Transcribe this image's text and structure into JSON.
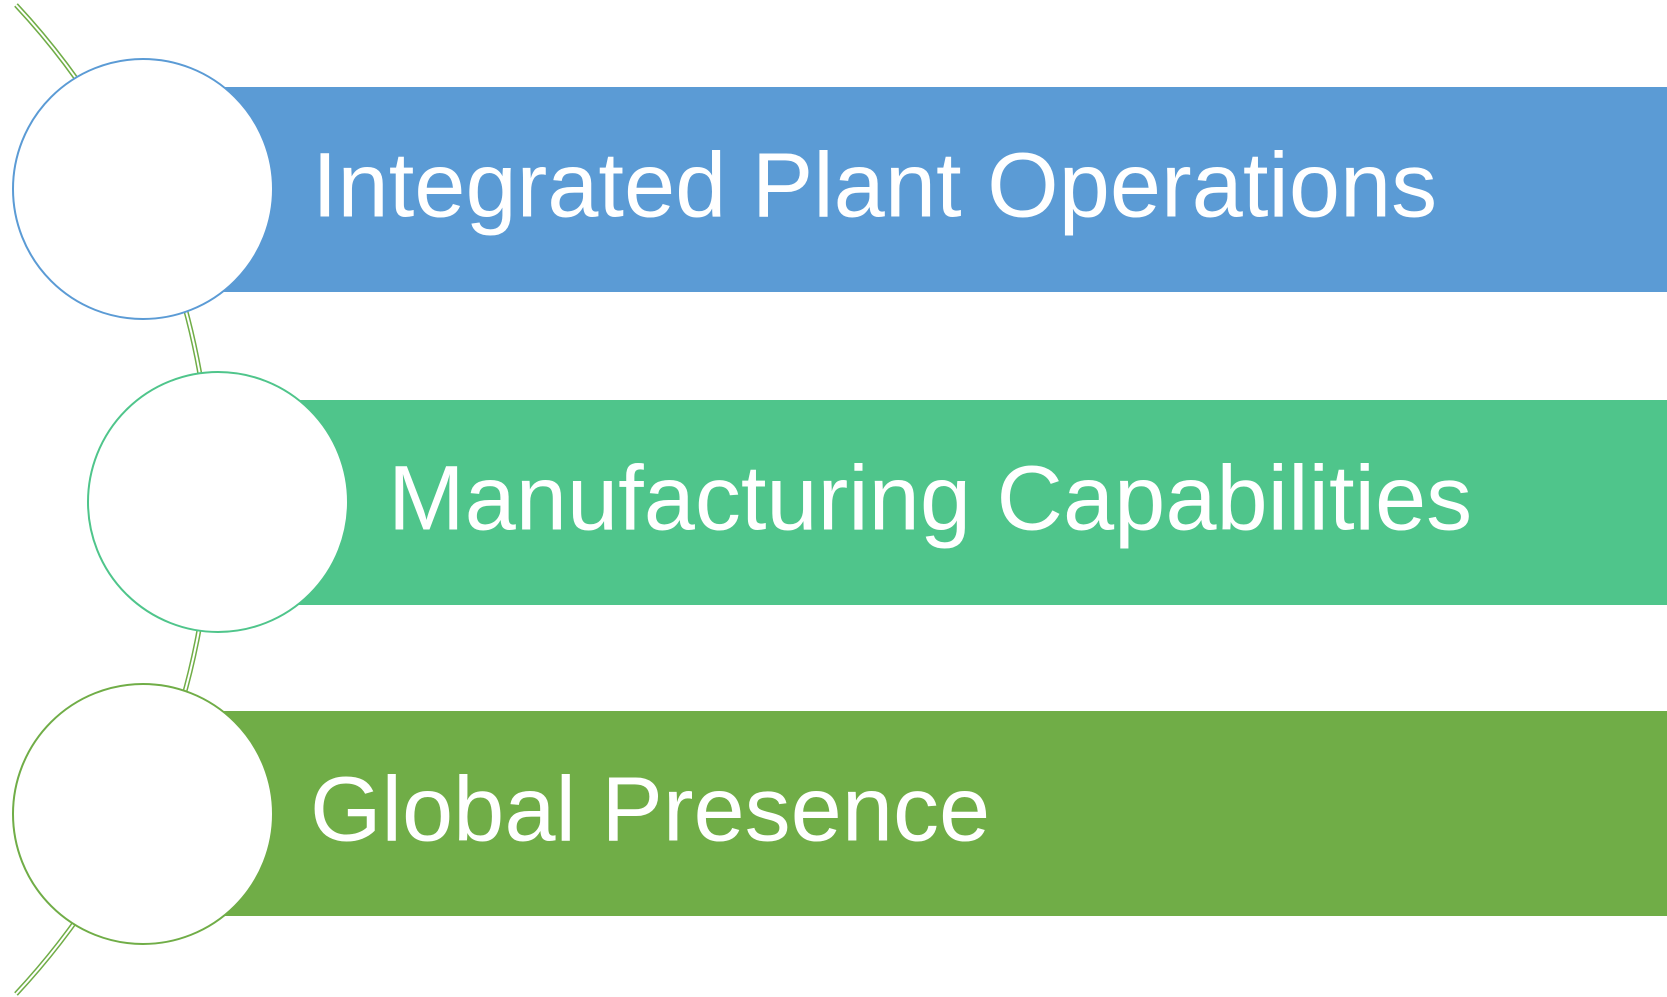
{
  "items": [
    {
      "label": "Integrated Plant Operations"
    },
    {
      "label": "Manufacturing Capabilities"
    },
    {
      "label": "Global Presence"
    }
  ]
}
